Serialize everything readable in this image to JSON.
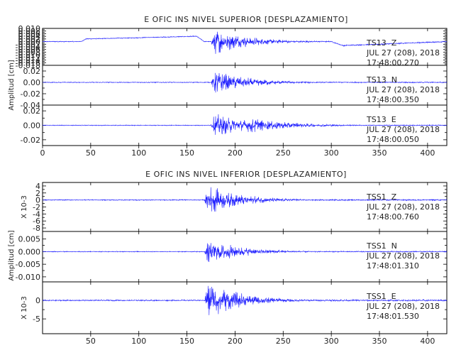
{
  "colors": {
    "trace": "#1a1aff",
    "axis": "#000000",
    "background": "#ffffff"
  },
  "chart_data": [
    {
      "type": "line",
      "title": "E OFIC INS NIVEL SUPERIOR [DESPLAZAMIENTO]",
      "ylabel": "Amplitud [cm]",
      "xlim": [
        0,
        420
      ],
      "x_ticks": [
        0,
        50,
        100,
        150,
        200,
        250,
        300,
        350,
        400
      ],
      "x_tick_labels": [
        "0",
        "50",
        "100",
        "150",
        "200",
        "250",
        "300",
        "350",
        "400"
      ],
      "grid": false,
      "panels": [
        {
          "channel": "TS13  Z",
          "date": "JUL 27 (208), 2018",
          "time": "17:48:00.270",
          "ylim": [
            -0.018,
            0.01
          ],
          "y_ticks": [
            0.01,
            0.008,
            0.006,
            0.004,
            0.002,
            0.0,
            -0.002,
            -0.004,
            -0.006,
            -0.008,
            -0.01,
            -0.012,
            -0.014,
            -0.016,
            -0.018
          ],
          "y_tick_labels": [
            "0.010",
            "0.008",
            "0.006",
            "0.004",
            "0.002",
            "0.000",
            "-0.002",
            "-0.004",
            "-0.006",
            "-0.008",
            "-0.010",
            "-0.012",
            "-0.014",
            "-0.016",
            "-0.018"
          ],
          "onset_s": 175,
          "peak_abs": 0.012,
          "baseline": [
            [
              0,
              0.0
            ],
            [
              40,
              0.0
            ],
            [
              45,
              0.002
            ],
            [
              160,
              0.004
            ],
            [
              168,
              0.0
            ],
            [
              300,
              0.0
            ],
            [
              312,
              -0.003
            ],
            [
              420,
              0.0
            ]
          ]
        },
        {
          "channel": "TS13  N",
          "date": "JUL 27 (208), 2018",
          "time": "17:48:00.350",
          "ylim": [
            -0.04,
            0.03
          ],
          "y_ticks": [
            0.02,
            0.0,
            -0.02,
            -0.04
          ],
          "y_tick_labels": [
            "0.02",
            "0.00",
            "-0.02",
            "-0.04"
          ],
          "onset_s": 175,
          "peak_abs": 0.026
        },
        {
          "channel": "TS13  E",
          "date": "JUL 27 (208), 2018",
          "time": "17:48:00.050",
          "ylim": [
            -0.028,
            0.028
          ],
          "y_ticks": [
            0.02,
            0.0,
            -0.02
          ],
          "y_tick_labels": [
            "0.02",
            "0.00",
            "-0.02"
          ],
          "onset_s": 175,
          "peak_abs": 0.02
        }
      ]
    },
    {
      "type": "line",
      "title": "E OFIC INS NIVEL INFERIOR [DESPLAZAMIENTO]",
      "ylabel": "Amplitud [cm]",
      "xlim": [
        0,
        420
      ],
      "x_ticks": [
        50,
        100,
        150,
        200,
        250,
        300,
        350,
        400
      ],
      "x_tick_labels": [
        "50",
        "100",
        "150",
        "200",
        "250",
        "300",
        "350",
        "400"
      ],
      "grid": false,
      "panels": [
        {
          "channel": "TSS1  Z",
          "date": "JUL 27 (208), 2018",
          "time": "17:48:00.760",
          "scale_label": "X 10-3",
          "ylim": [
            -9,
            5
          ],
          "y_ticks": [
            4,
            2,
            0,
            -2,
            -4,
            -6,
            -8
          ],
          "y_tick_labels": [
            "4",
            "2",
            "0",
            "-2",
            "-4",
            "-6",
            "-8"
          ],
          "onset_s": 168,
          "peak_abs": 5
        },
        {
          "channel": "TSS1  N",
          "date": "JUL 27 (208), 2018",
          "time": "17:48:01.310",
          "ylim": [
            -0.012,
            0.008
          ],
          "y_ticks": [
            0.005,
            0.0,
            -0.005,
            -0.01
          ],
          "y_tick_labels": [
            "0.005",
            "0.000",
            "-0.005",
            "-0.010"
          ],
          "onset_s": 168,
          "peak_abs": 0.006
        },
        {
          "channel": "TSS1  E",
          "date": "JUL 27 (208), 2018",
          "time": "17:48:01.530",
          "scale_label": "X 10-3",
          "ylim": [
            -9,
            5
          ],
          "y_ticks": [
            0,
            -5
          ],
          "y_tick_labels": [
            "0",
            "-5"
          ],
          "onset_s": 168,
          "peak_abs": 6
        }
      ]
    }
  ]
}
